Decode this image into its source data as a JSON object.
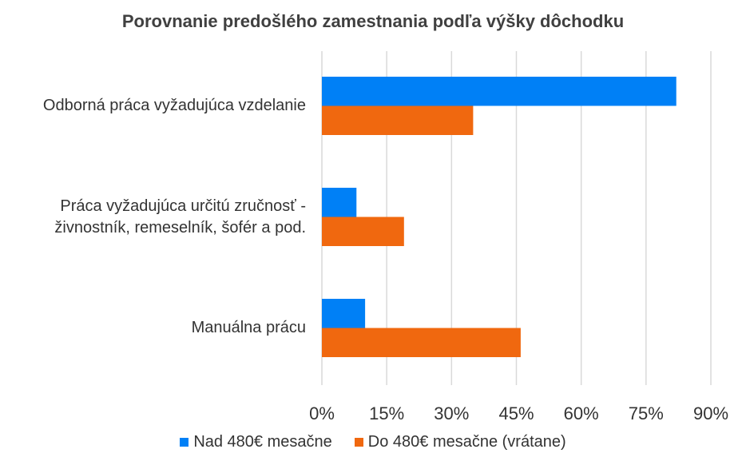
{
  "chart_data": {
    "type": "bar",
    "orientation": "horizontal",
    "title": "Porovnanie predošlého zamestnania podľa výšky dôchodku",
    "categories": [
      "Odborná práca vyžadujúca vzdelanie",
      "Práca vyžadujúca určitú zručnosť - živnostník, remeselník, šofér a pod.",
      "Manuálna prácu"
    ],
    "category_lines": [
      [
        "Odborná práca vyžadujúca vzdelanie"
      ],
      [
        "Práca vyžadujúca určitú zručnosť -",
        "živnostník, remeselník, šofér a pod."
      ],
      [
        "Manuálna prácu"
      ]
    ],
    "series": [
      {
        "name": "Nad 480€ mesačne",
        "color": "#0080F6",
        "values": [
          82,
          8,
          10
        ]
      },
      {
        "name": "Do 480€ mesačne (vrátane)",
        "color": "#F0680F",
        "values": [
          35,
          19,
          46
        ]
      }
    ],
    "xlim": [
      0,
      90
    ],
    "xticks": [
      "0%",
      "15%",
      "30%",
      "45%",
      "60%",
      "75%",
      "90%"
    ],
    "xtick_values": [
      0,
      15,
      30,
      45,
      60,
      75,
      90
    ],
    "grid": true,
    "legend": "bottom"
  }
}
